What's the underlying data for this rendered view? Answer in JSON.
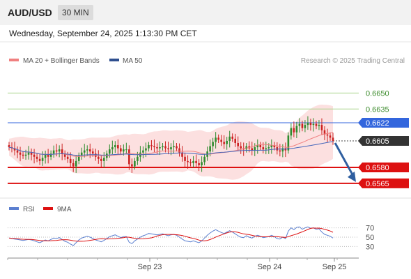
{
  "header": {
    "pair": "AUD/USD",
    "timeframe": "30 MIN"
  },
  "datetime": "Wednesday, September 24, 2025 1:13:30 PM CET",
  "legend": {
    "ma20": "MA 20 + Bollinger Bands",
    "ma50": "MA 50",
    "credit": "Research © 2025 Trading Central",
    "rsi": "RSI",
    "ma9": "9MA"
  },
  "colors": {
    "candle_up": "#2e8b2e",
    "candle_down": "#cc2222",
    "ma20": "#f08080",
    "ma50": "#4466bb",
    "band_fill": "#fbd8d8",
    "resistance": "#a8d48a",
    "pivot": "#3366dd",
    "support": "#dd1111",
    "current": "#333333",
    "arrow": "#2f5fa0"
  },
  "chart_data": [
    {
      "type": "candlestick",
      "ylim": [
        0.6559,
        0.6668
      ],
      "x_ticks": [
        "Sep 23",
        "Sep 24",
        "Sep 25"
      ],
      "levels": [
        {
          "value": 0.665,
          "label": "0.6650",
          "kind": "resistance"
        },
        {
          "value": 0.6635,
          "label": "0.6635",
          "kind": "resistance"
        },
        {
          "value": 0.6622,
          "label": "0.6622",
          "kind": "pivot"
        },
        {
          "value": 0.6605,
          "label": "0.6605",
          "kind": "current"
        },
        {
          "value": 0.658,
          "label": "0.6580",
          "kind": "support"
        },
        {
          "value": 0.6565,
          "label": "0.6565",
          "kind": "support"
        }
      ],
      "closes": [
        0.6599,
        0.6598,
        0.6596,
        0.6594,
        0.6592,
        0.6591,
        0.6592,
        0.6594,
        0.6592,
        0.659,
        0.6588,
        0.6586,
        0.6589,
        0.6592,
        0.659,
        0.6593,
        0.6596,
        0.6595,
        0.6597,
        0.6593,
        0.659,
        0.6588,
        0.6584,
        0.6581,
        0.6586,
        0.6591,
        0.6594,
        0.6596,
        0.6597,
        0.6595,
        0.6593,
        0.659,
        0.6588,
        0.6586,
        0.6589,
        0.6593,
        0.6597,
        0.6599,
        0.6601,
        0.6598,
        0.6595,
        0.6597,
        0.6597,
        0.6583,
        0.6581,
        0.6586,
        0.659,
        0.6594,
        0.6596,
        0.6598,
        0.6601,
        0.66,
        0.6599,
        0.6598,
        0.6599,
        0.66,
        0.6598,
        0.6597,
        0.6599,
        0.66,
        0.6598,
        0.6594,
        0.659,
        0.6586,
        0.6585,
        0.6584,
        0.6586,
        0.6584,
        0.6582,
        0.6585,
        0.659,
        0.6595,
        0.66,
        0.6604,
        0.6608,
        0.6606,
        0.6604,
        0.6602,
        0.6605,
        0.6609,
        0.6607,
        0.6603,
        0.66,
        0.6598,
        0.6597,
        0.66,
        0.6598,
        0.6596,
        0.6599,
        0.6601,
        0.6599,
        0.6597,
        0.6598,
        0.6599,
        0.6601,
        0.6599,
        0.6596,
        0.6595,
        0.6598,
        0.6596,
        0.661,
        0.6617,
        0.6613,
        0.6619,
        0.6621,
        0.6617,
        0.662,
        0.6622,
        0.662,
        0.6621,
        0.6619,
        0.662,
        0.6615,
        0.6611,
        0.661,
        0.6608,
        0.6605
      ],
      "rsi": {
        "ylim": [
          20,
          80
        ],
        "levels": [
          70,
          50,
          30
        ],
        "values": [
          48,
          47,
          46,
          45,
          44,
          43,
          44,
          45,
          44,
          42,
          40,
          38,
          41,
          44,
          42,
          45,
          48,
          47,
          49,
          45,
          41,
          39,
          35,
          32,
          38,
          44,
          48,
          50,
          52,
          50,
          47,
          44,
          42,
          40,
          43,
          47,
          51,
          53,
          55,
          52,
          49,
          51,
          51,
          39,
          36,
          42,
          46,
          50,
          53,
          55,
          58,
          57,
          56,
          55,
          56,
          57,
          55,
          53,
          55,
          56,
          54,
          50,
          46,
          42,
          41,
          40,
          42,
          40,
          38,
          42,
          48,
          54,
          59,
          63,
          66,
          63,
          60,
          58,
          61,
          64,
          61,
          57,
          53,
          50,
          49,
          53,
          50,
          48,
          52,
          54,
          52,
          49,
          50,
          51,
          54,
          51,
          47,
          46,
          50,
          47,
          63,
          70,
          66,
          71,
          72,
          67,
          70,
          72,
          69,
          70,
          67,
          68,
          61,
          56,
          54,
          52,
          48
        ]
      }
    }
  ]
}
